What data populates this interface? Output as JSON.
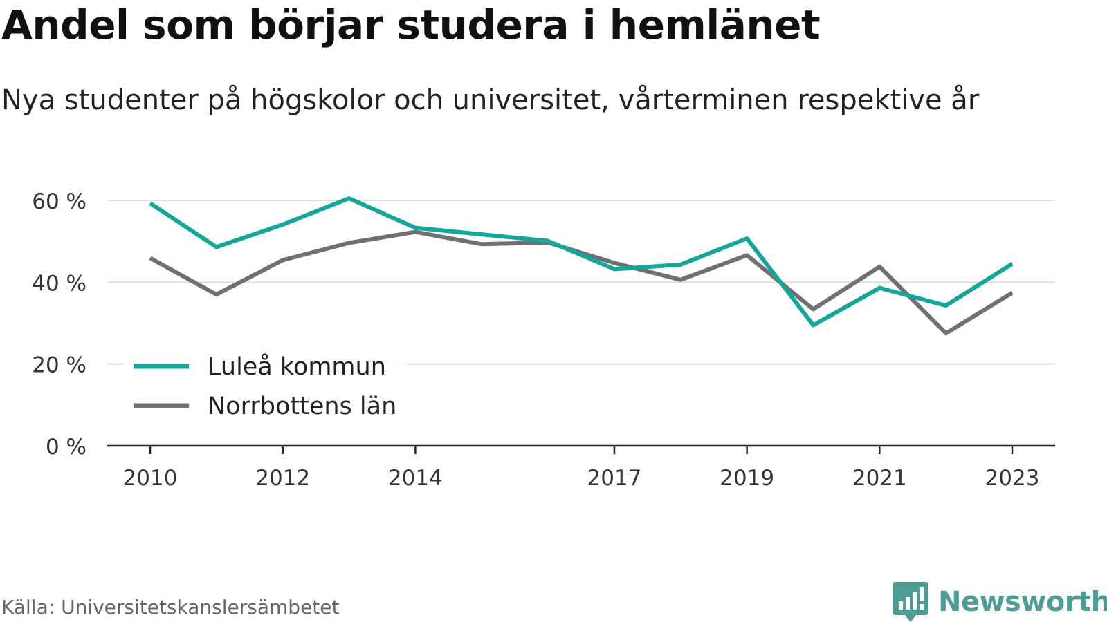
{
  "title": "Andel som börjar studera i hemlänet",
  "subtitle": "Nya studenter på högskolor och universitet, vårterminen respektive år",
  "source": "Källa: Universitetskanslersämbetet",
  "brand": {
    "name": "Newsworthy",
    "color": "#4f9c94",
    "icon": "newsworthy-logo-icon"
  },
  "chart_data": {
    "type": "line",
    "title": "Andel som börjar studera i hemlänet",
    "subtitle": "Nya studenter på högskolor och universitet, vårterminen respektive år",
    "xlabel": "",
    "ylabel": "",
    "x": [
      2010,
      2011,
      2012,
      2013,
      2014,
      2015,
      2016,
      2017,
      2018,
      2019,
      2020,
      2021,
      2022,
      2023
    ],
    "x_ticks": [
      "2010",
      "2012",
      "2014",
      "2017",
      "2019",
      "2021",
      "2023"
    ],
    "y_ticks": [
      {
        "value": 0,
        "label": "0 %"
      },
      {
        "value": 20,
        "label": "20 %"
      },
      {
        "value": 40,
        "label": "40 %"
      },
      {
        "value": 60,
        "label": "60 %"
      }
    ],
    "ylim": [
      0,
      60
    ],
    "unit": "%",
    "grid": true,
    "legend_position": "bottom-left",
    "series": [
      {
        "name": "Luleå kommun",
        "color": "#14a69a",
        "values": [
          59.3,
          48.6,
          54.1,
          60.5,
          53.3,
          51.7,
          50.1,
          43.2,
          44.3,
          50.7,
          29.5,
          38.6,
          34.3,
          44.5
        ]
      },
      {
        "name": "Norrbottens län",
        "color": "#6f6f76",
        "values": [
          45.9,
          37.0,
          45.4,
          49.6,
          52.3,
          49.3,
          49.7,
          44.7,
          40.6,
          46.6,
          33.4,
          43.8,
          27.5,
          37.4
        ]
      }
    ]
  }
}
